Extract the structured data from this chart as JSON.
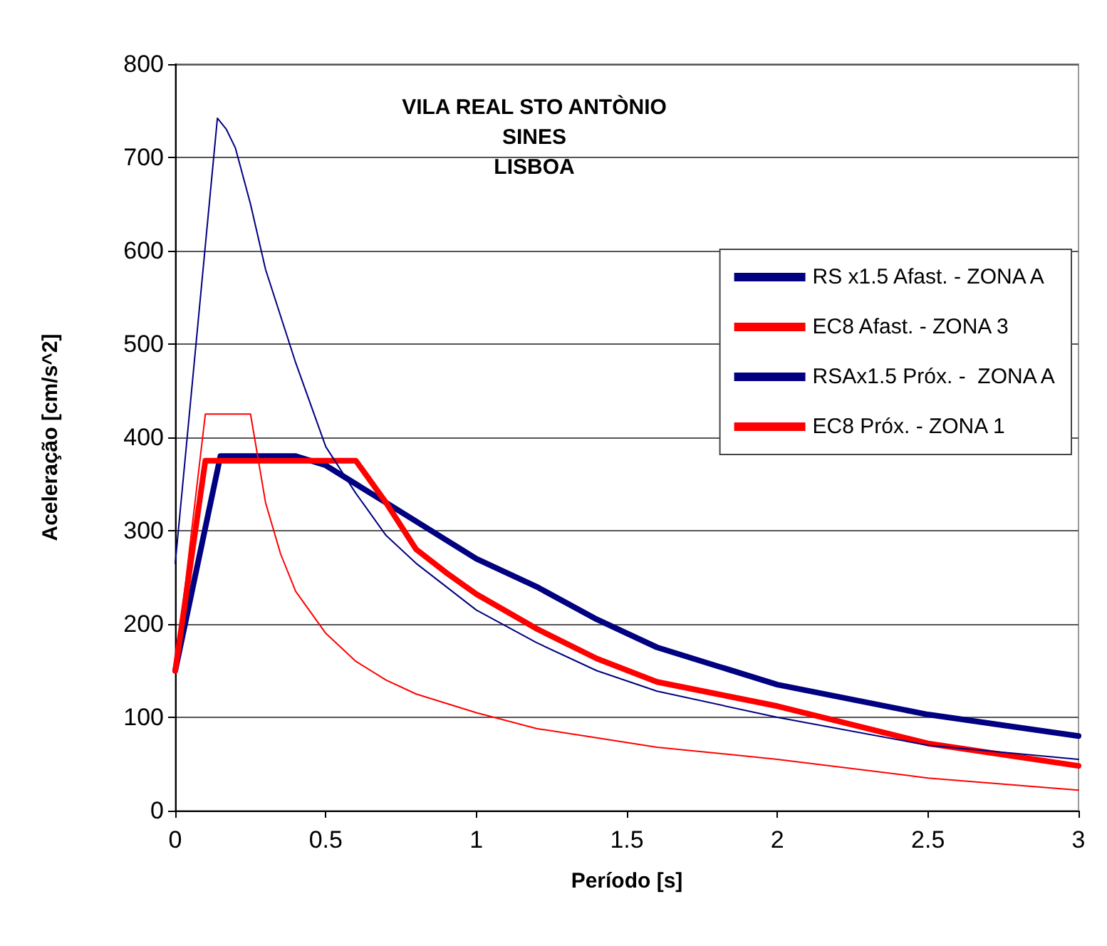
{
  "chart_data": {
    "type": "line",
    "title": "VILA REAL STO ANTÒNIO\nSINES\nLISBOA",
    "xlabel": "Período [s]",
    "ylabel": "Aceleração [cm/s^2]",
    "xlim": [
      0,
      3
    ],
    "xticks": [
      0,
      0.5,
      1,
      1.5,
      2,
      2.5,
      3
    ],
    "ylim": [
      0,
      800
    ],
    "yticks": [
      0,
      100,
      200,
      300,
      400,
      500,
      600,
      700,
      800
    ],
    "grid": "y",
    "legend": "right",
    "marker": "none",
    "line_style": "solid",
    "series": [
      {
        "name": "RS x1.5 Afast. - ZONA A",
        "color": "#000080",
        "x": [
          0,
          0.15,
          0.4,
          0.5,
          0.6,
          0.7,
          0.8,
          0.9,
          1.0,
          1.2,
          1.4,
          1.6,
          1.8,
          2.0,
          2.5,
          3.0
        ],
        "values": [
          150,
          380,
          380,
          370,
          350,
          330,
          310,
          290,
          270,
          240,
          205,
          175,
          155,
          135,
          103,
          80
        ]
      },
      {
        "name": "EC8 Afast. - ZONA 3",
        "color": "#ff0000",
        "x": [
          0,
          0.1,
          0.6,
          0.7,
          0.8,
          0.9,
          1.0,
          1.2,
          1.4,
          1.6,
          1.8,
          2.0,
          2.5,
          3.0
        ],
        "values": [
          150,
          375,
          375,
          330,
          280,
          255,
          232,
          195,
          163,
          138,
          125,
          112,
          72,
          48
        ]
      },
      {
        "name": "RSAx1.5 Próx. -  ZONA A",
        "color": "#000080",
        "x": [
          0,
          0.14,
          0.17,
          0.2,
          0.25,
          0.3,
          0.4,
          0.5,
          0.6,
          0.7,
          0.8,
          1.0,
          1.2,
          1.4,
          1.6,
          2.0,
          2.5,
          3.0
        ],
        "values": [
          265,
          742,
          730,
          710,
          650,
          580,
          480,
          390,
          340,
          295,
          265,
          215,
          180,
          150,
          128,
          100,
          70,
          55
        ]
      },
      {
        "name": "EC8 Próx. - ZONA 1",
        "color": "#ff0000",
        "x": [
          0,
          0.1,
          0.25,
          0.3,
          0.35,
          0.4,
          0.5,
          0.6,
          0.7,
          0.8,
          1.0,
          1.2,
          1.4,
          1.6,
          2.0,
          2.5,
          3.0
        ],
        "values": [
          150,
          425,
          425,
          330,
          275,
          235,
          190,
          160,
          140,
          125,
          105,
          88,
          78,
          68,
          55,
          35,
          22
        ]
      }
    ]
  }
}
